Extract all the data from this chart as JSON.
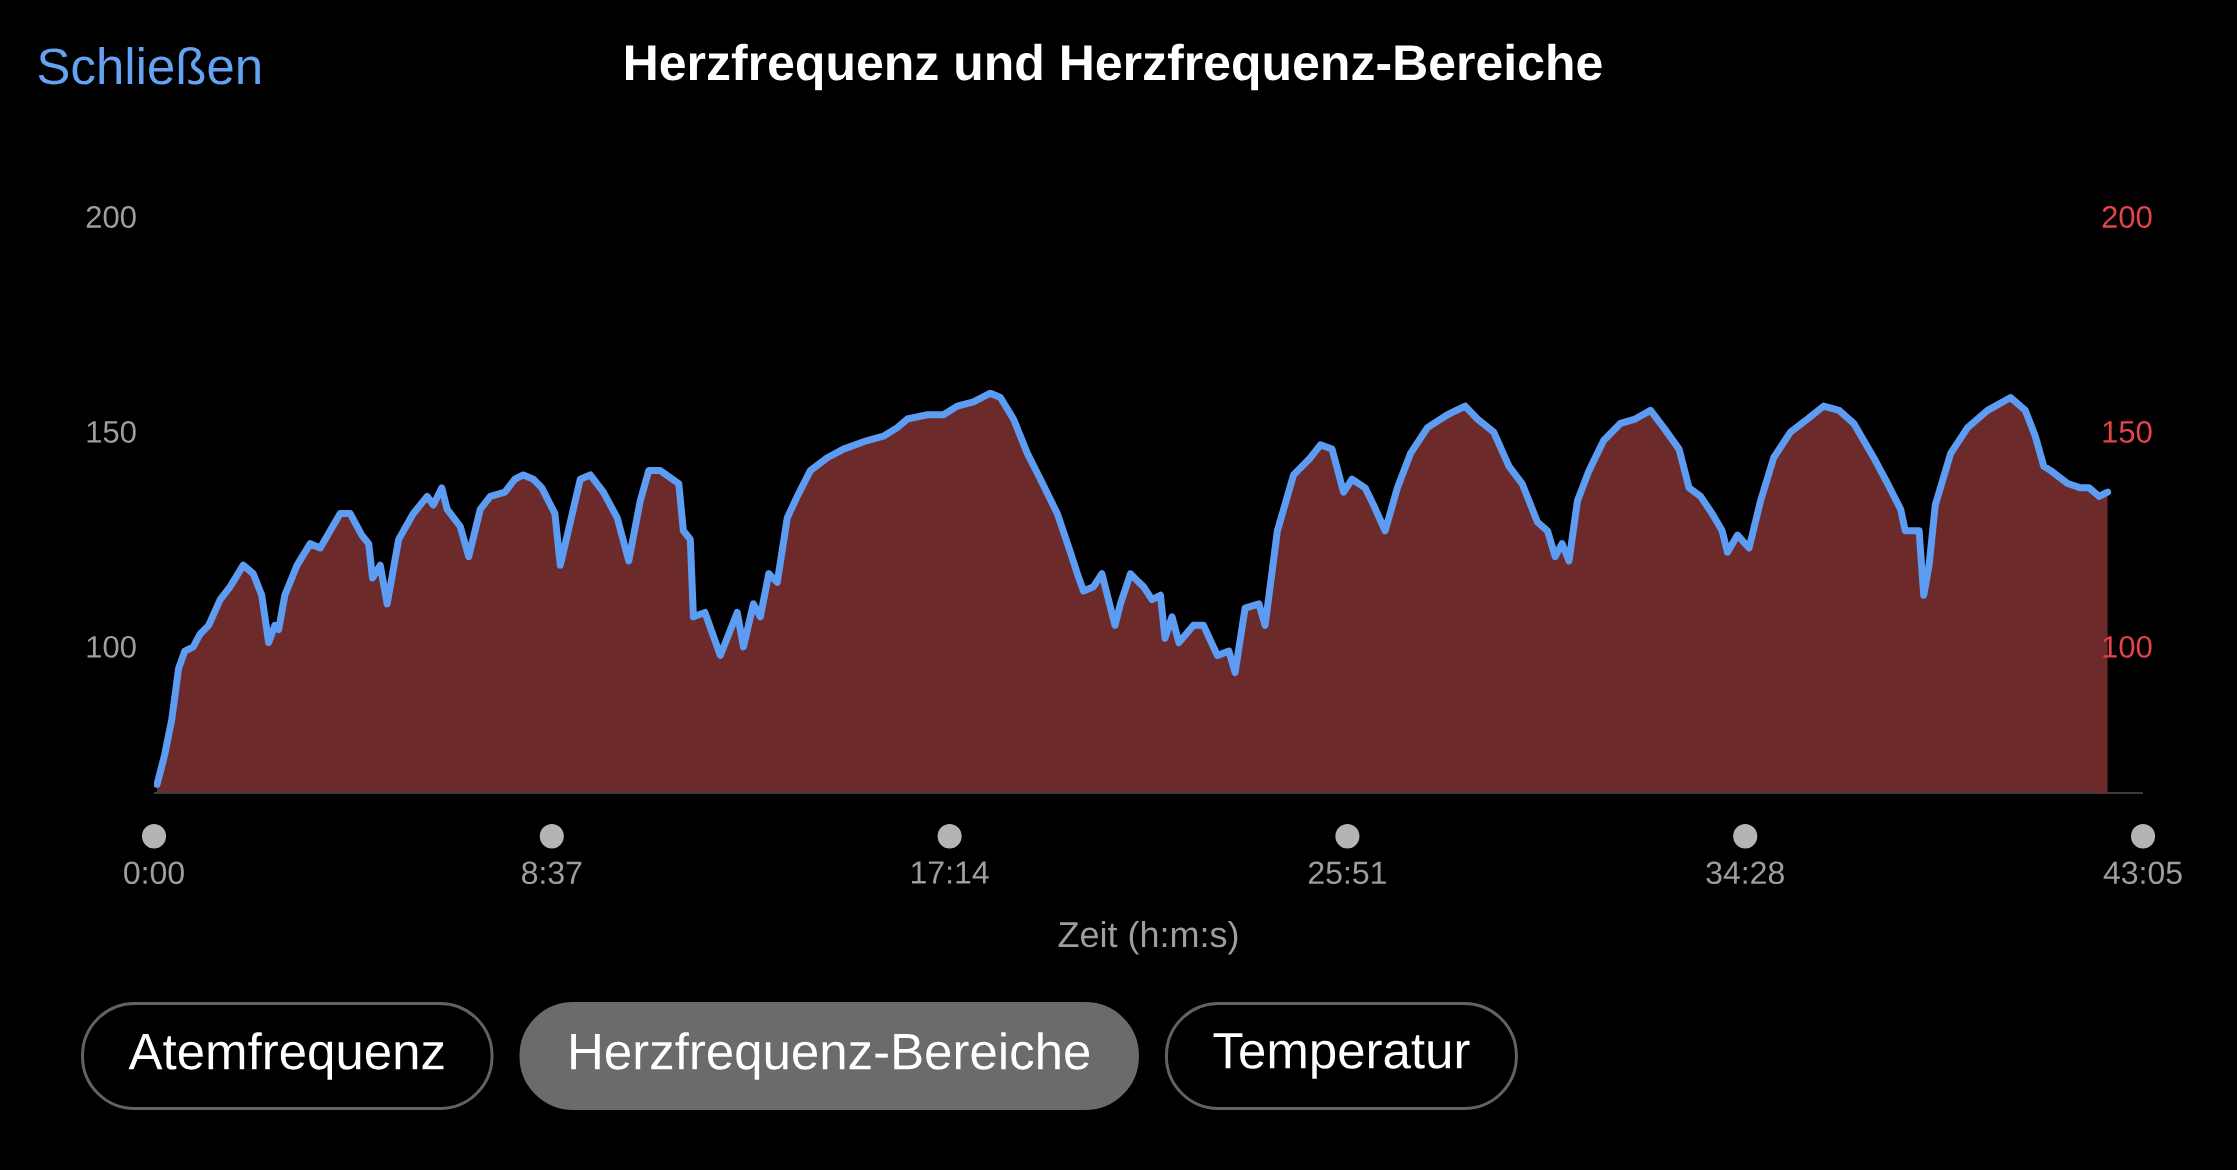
{
  "chart_data": {
    "type": "area",
    "title": "Herzfrequenz und Herzfrequenz-Bereiche",
    "xlabel": "Zeit (h:m:s)",
    "annotations": [
      "Schließen",
      "Atemfrequenz",
      "Herzfrequenz-Bereiche",
      "Temperatur"
    ],
    "xlim": [
      0,
      2585
    ],
    "xticks": [
      {
        "value": 0,
        "label": "0:00"
      },
      {
        "value": 517,
        "label": "8:37"
      },
      {
        "value": 1034,
        "label": "17:14"
      },
      {
        "value": 1551,
        "label": "25:51"
      },
      {
        "value": 2068,
        "label": "34:28"
      },
      {
        "value": 2585,
        "label": "43:05"
      }
    ],
    "ylim": [
      66,
      200
    ],
    "yticks": [
      100,
      150,
      200
    ],
    "y2lim": [
      66,
      200
    ],
    "y2ticks": [
      100,
      150,
      200
    ],
    "x": [
      4,
      14,
      23,
      32,
      40,
      51,
      60,
      71,
      86,
      99,
      116,
      129,
      140,
      149,
      157,
      162,
      170,
      186,
      203,
      216,
      242,
      255,
      270,
      279,
      284,
      294,
      303,
      318,
      337,
      355,
      363,
      374,
      381,
      398,
      409,
      424,
      437,
      456,
      469,
      480,
      493,
      504,
      521,
      528,
      541,
      554,
      567,
      584,
      602,
      617,
      632,
      643,
      658,
      682,
      688,
      697,
      701,
      716,
      736,
      758,
      766,
      779,
      788,
      799,
      810,
      823,
      836,
      853,
      875,
      896,
      927,
      948,
      966,
      979,
      1005,
      1026,
      1044,
      1065,
      1087,
      1100,
      1117,
      1135,
      1152,
      1174,
      1191,
      1200,
      1208,
      1221,
      1232,
      1239,
      1249,
      1256,
      1269,
      1280,
      1286,
      1297,
      1308,
      1314,
      1323,
      1332,
      1351,
      1364,
      1382,
      1397,
      1405,
      1418,
      1436,
      1444,
      1460,
      1481,
      1503,
      1516,
      1531,
      1546,
      1557,
      1574,
      1585,
      1600,
      1616,
      1633,
      1655,
      1681,
      1704,
      1720,
      1741,
      1761,
      1778,
      1798,
      1811,
      1821,
      1830,
      1839,
      1850,
      1865,
      1884,
      1906,
      1925,
      1945,
      1962,
      1982,
      1995,
      2010,
      2025,
      2038,
      2045,
      2058,
      2073,
      2088,
      2105,
      2127,
      2149,
      2170,
      2190,
      2209,
      2235,
      2253,
      2270,
      2276,
      2294,
      2300,
      2307,
      2315,
      2335,
      2357,
      2383,
      2413,
      2432,
      2445,
      2456,
      2465,
      2487,
      2504,
      2515,
      2528,
      2539
    ],
    "series": [
      {
        "color": "#6d2a2a",
        "values": [
          68,
          75,
          83,
          95,
          99,
          100,
          103,
          105,
          111,
          114,
          119,
          117,
          112,
          101,
          105,
          104,
          112,
          119,
          124,
          123,
          131,
          131,
          126,
          124,
          116,
          119,
          110,
          125,
          131,
          135,
          133,
          137,
          132,
          128,
          121,
          132,
          135,
          136,
          139,
          140,
          139,
          137,
          131,
          119,
          129,
          139,
          140,
          136,
          130,
          120,
          134,
          141,
          141,
          138,
          127,
          125,
          107,
          108,
          98,
          108,
          100,
          110,
          107,
          117,
          115,
          130,
          135,
          141,
          144,
          146,
          148,
          149,
          151,
          153,
          154,
          154,
          156,
          157,
          159,
          158,
          153,
          145,
          139,
          131,
          122,
          117,
          113,
          114,
          117,
          112,
          105,
          110,
          117,
          115,
          114,
          111,
          112,
          102,
          107,
          101,
          105,
          105,
          98,
          99,
          94,
          109,
          110,
          105,
          127,
          140,
          144,
          147,
          146,
          136,
          139,
          137,
          133,
          127,
          137,
          145,
          151,
          154,
          156,
          153,
          150,
          142,
          138,
          129,
          127,
          121,
          124,
          120,
          134,
          141,
          148,
          152,
          153,
          155,
          151,
          146,
          137,
          135,
          131,
          127,
          122,
          126,
          123,
          134,
          144,
          150,
          153,
          156,
          155,
          152,
          144,
          138,
          132,
          127,
          127,
          112,
          119,
          133,
          145,
          151,
          155,
          158,
          155,
          149,
          142,
          141,
          138,
          137,
          137,
          135,
          136
        ]
      },
      {
        "type": "line",
        "color": "#5c9cf2",
        "values": [
          68,
          75,
          83,
          95,
          99,
          100,
          103,
          105,
          111,
          114,
          119,
          117,
          112,
          101,
          105,
          104,
          112,
          119,
          124,
          123,
          131,
          131,
          126,
          124,
          116,
          119,
          110,
          125,
          131,
          135,
          133,
          137,
          132,
          128,
          121,
          132,
          135,
          136,
          139,
          140,
          139,
          137,
          131,
          119,
          129,
          139,
          140,
          136,
          130,
          120,
          134,
          141,
          141,
          138,
          127,
          125,
          107,
          108,
          98,
          108,
          100,
          110,
          107,
          117,
          115,
          130,
          135,
          141,
          144,
          146,
          148,
          149,
          151,
          153,
          154,
          154,
          156,
          157,
          159,
          158,
          153,
          145,
          139,
          131,
          122,
          117,
          113,
          114,
          117,
          112,
          105,
          110,
          117,
          115,
          114,
          111,
          112,
          102,
          107,
          101,
          105,
          105,
          98,
          99,
          94,
          109,
          110,
          105,
          127,
          140,
          144,
          147,
          146,
          136,
          139,
          137,
          133,
          127,
          137,
          145,
          151,
          154,
          156,
          153,
          150,
          142,
          138,
          129,
          127,
          121,
          124,
          120,
          134,
          141,
          148,
          152,
          153,
          155,
          151,
          146,
          137,
          135,
          131,
          127,
          122,
          126,
          123,
          134,
          144,
          150,
          153,
          156,
          155,
          152,
          144,
          138,
          132,
          127,
          127,
          112,
          119,
          133,
          145,
          151,
          155,
          158,
          155,
          149,
          142,
          141,
          138,
          137,
          137,
          135,
          136
        ]
      }
    ]
  }
}
